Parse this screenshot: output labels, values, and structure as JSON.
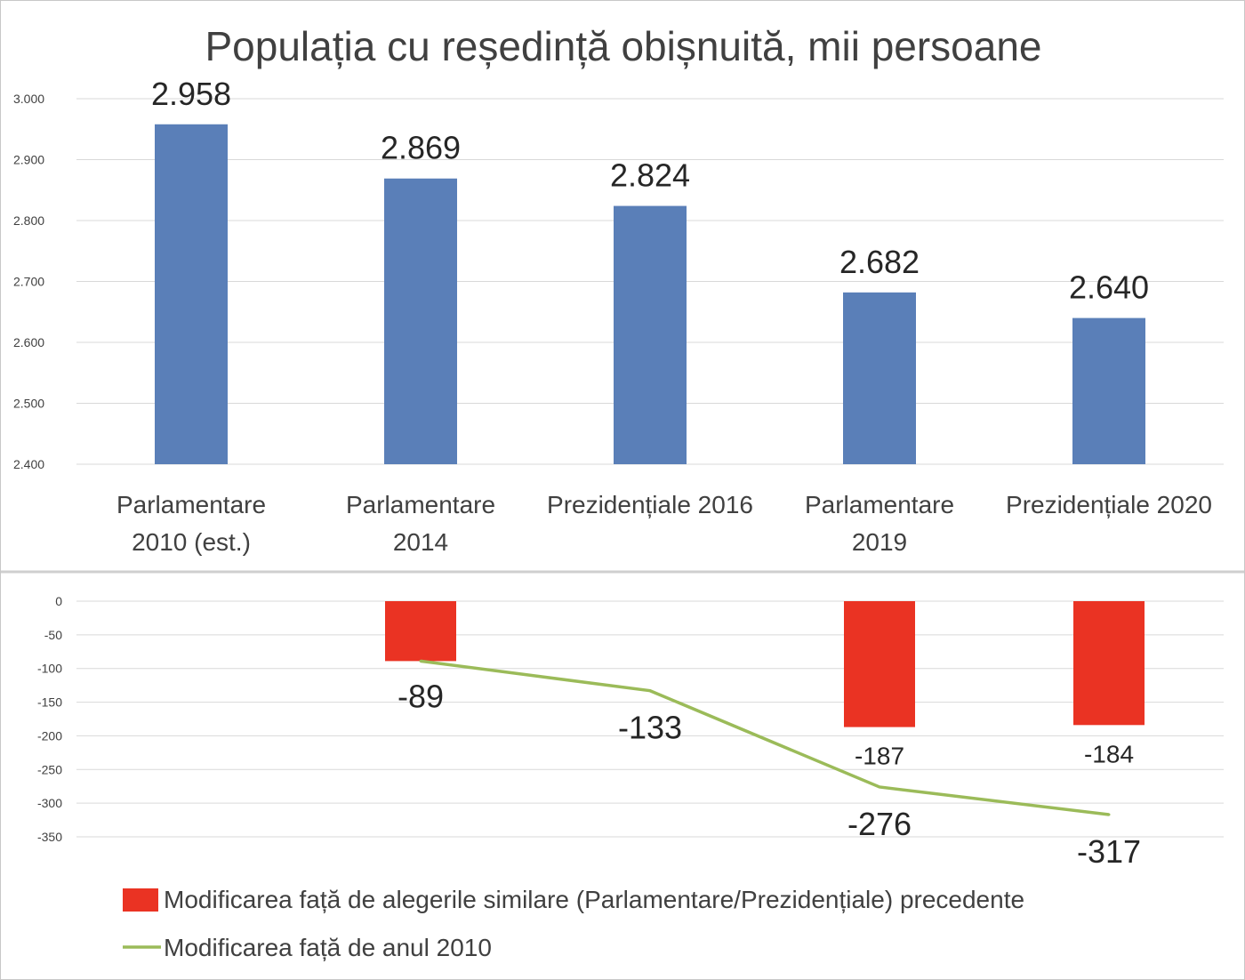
{
  "colors": {
    "bar_top": "#5a7fb8",
    "bar_bottom": "#ea3323",
    "line": "#9bbb59",
    "grid": "#d9d9d9",
    "text": "#404040"
  },
  "chart_data": [
    {
      "type": "bar",
      "title": "Populația cu reședință obișnuită, mii persoane",
      "categories": [
        [
          "Parlamentare",
          "2010 (est.)"
        ],
        [
          "Parlamentare",
          "2014"
        ],
        [
          "Prezidențiale 2016"
        ],
        [
          "Parlamentare",
          "2019"
        ],
        [
          "Prezidențiale 2020"
        ]
      ],
      "values": [
        2958,
        2869,
        2824,
        2682,
        2640
      ],
      "value_labels": [
        "2.958",
        "2.869",
        "2.824",
        "2.682",
        "2.640"
      ],
      "ylim": [
        2400,
        3000
      ],
      "yticks": [
        3000,
        2900,
        2800,
        2700,
        2600,
        2500,
        2400
      ],
      "ytick_labels": [
        "3.000",
        "2.900",
        "2.800",
        "2.700",
        "2.600",
        "2.500",
        "2.400"
      ],
      "grid": true
    },
    {
      "type": "bar",
      "title": "",
      "ylim": [
        -350,
        0
      ],
      "yticks": [
        0,
        -50,
        -100,
        -150,
        -200,
        -250,
        -300,
        -350
      ],
      "ytick_labels": [
        "0",
        "-50",
        "-100",
        "-150",
        "-200",
        "-250",
        "-300",
        "-350"
      ],
      "grid": true,
      "legend_position": "bottom",
      "series": [
        {
          "name": "Modificarea față de alegerile similare (Parlamentare/Prezidențiale)  precedente",
          "type": "bar",
          "values": [
            null,
            -89,
            null,
            -187,
            -184
          ],
          "value_labels": [
            "",
            "-89",
            "",
            "-187",
            "-184"
          ]
        },
        {
          "name": "Modificarea față de anul 2010",
          "type": "line",
          "values": [
            null,
            -89,
            -133,
            -276,
            -317
          ],
          "value_labels": [
            "",
            "",
            "-133",
            "-276",
            "-317"
          ]
        }
      ]
    }
  ]
}
